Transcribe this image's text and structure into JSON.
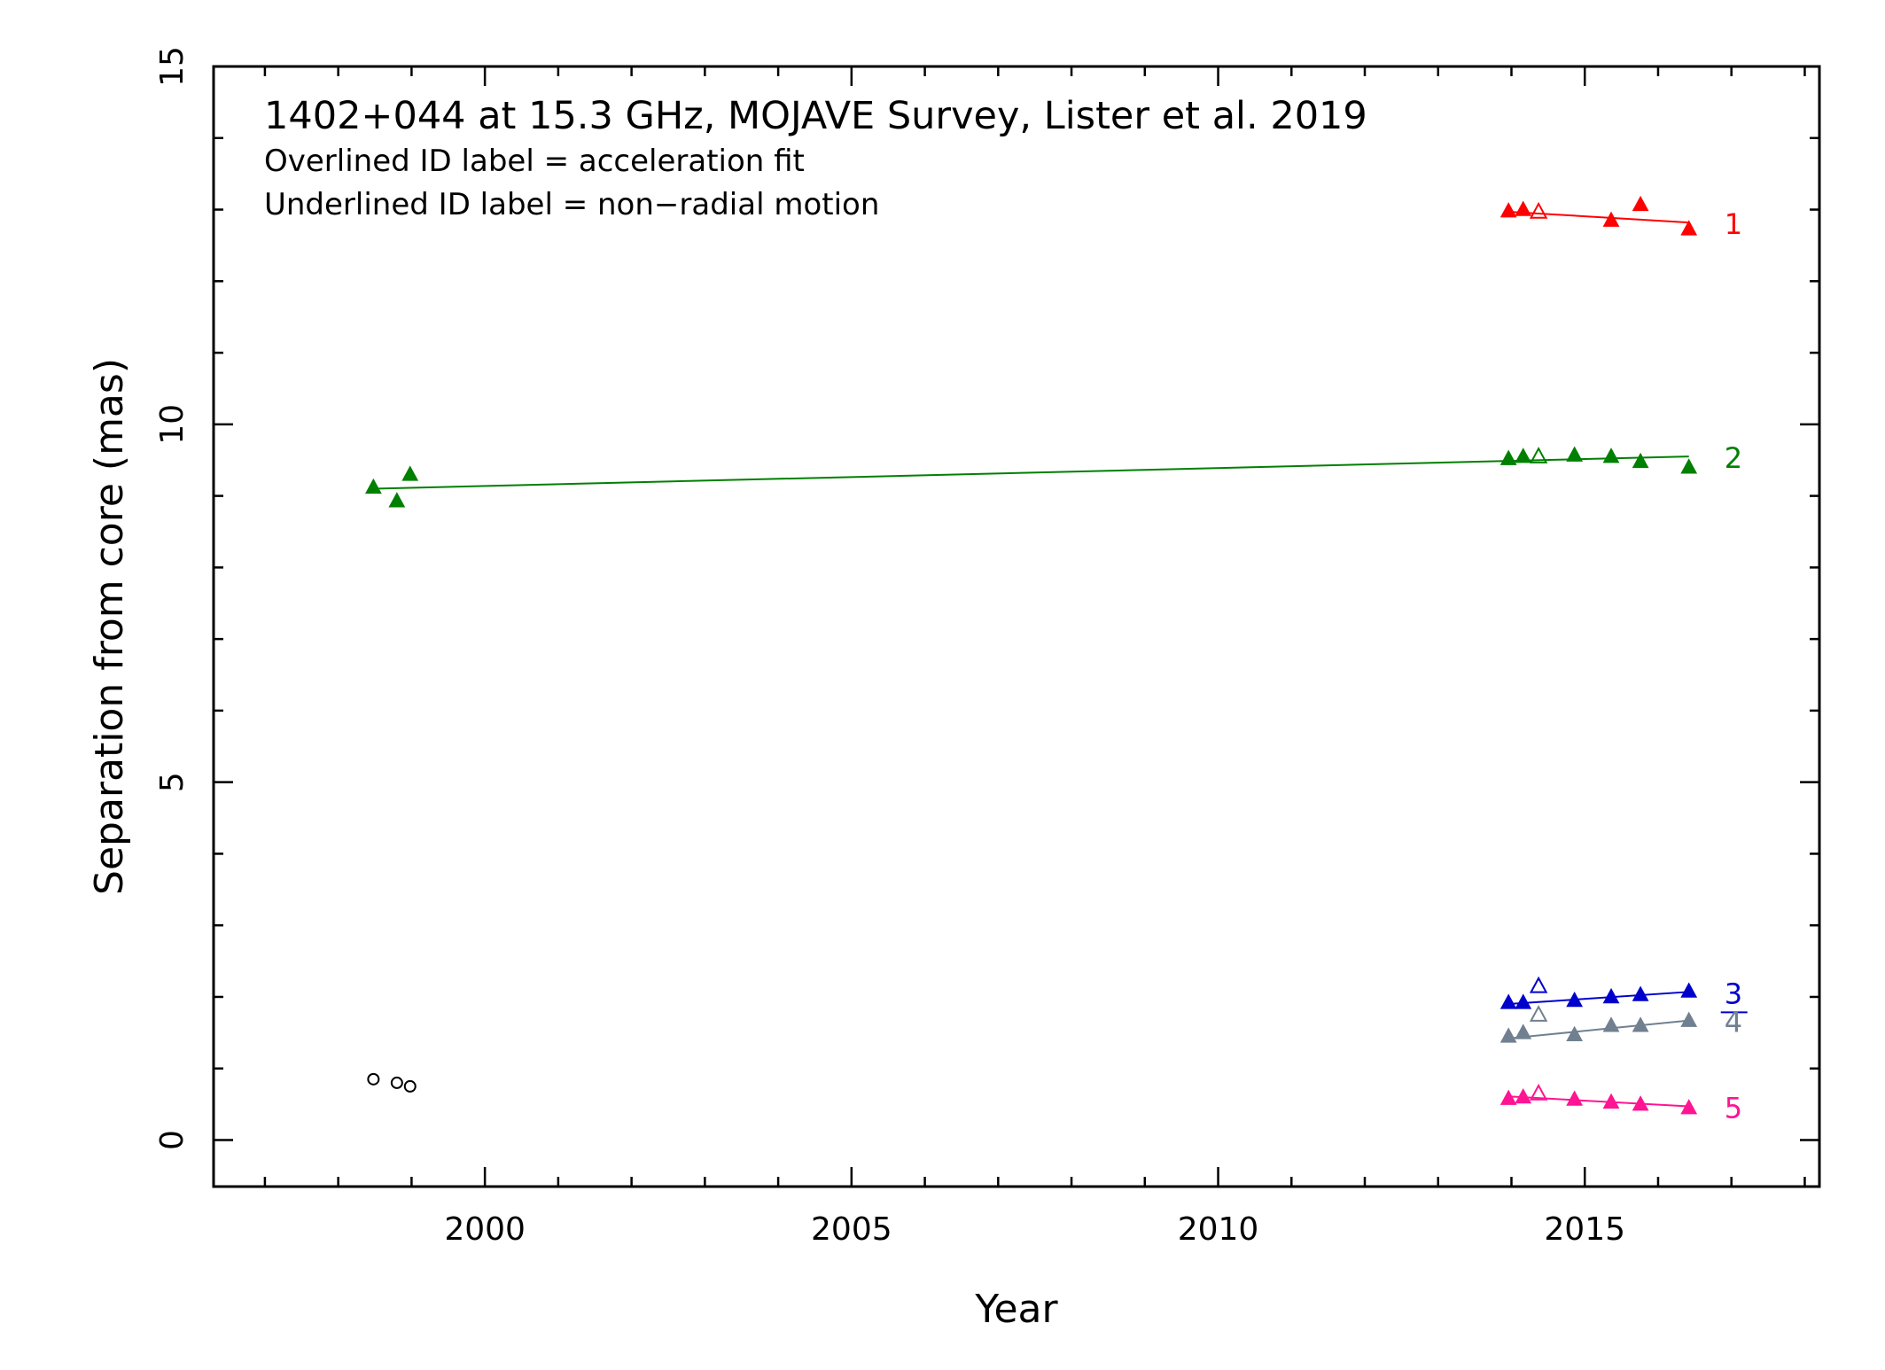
{
  "chart_data": {
    "type": "scatter",
    "title": "1402+044 at 15.3 GHz, MOJAVE Survey, Lister et al. 2019",
    "notes": [
      "Overlined ID label = acceleration fit",
      "Underlined ID label = non−radial motion"
    ],
    "xlabel": "Year",
    "ylabel": "Separation from core (mas)",
    "xlim": [
      1996.3,
      2018.2
    ],
    "ylim": [
      -0.65,
      15.0
    ],
    "x_ticks": [
      2000,
      2005,
      2010,
      2015
    ],
    "y_ticks": [
      0,
      5,
      10,
      15
    ],
    "grid": false,
    "series": [
      {
        "name": "1",
        "label_style": "plain",
        "color": "#ff0000",
        "points": [
          {
            "x": 2013.96,
            "y": 12.98,
            "filled": true
          },
          {
            "x": 2014.16,
            "y": 13.0,
            "filled": true
          },
          {
            "x": 2014.37,
            "y": 12.97,
            "filled": false
          },
          {
            "x": 2015.36,
            "y": 12.85,
            "filled": true
          },
          {
            "x": 2015.76,
            "y": 13.07,
            "filled": true
          },
          {
            "x": 2016.42,
            "y": 12.73,
            "filled": true
          }
        ],
        "fit": [
          [
            2013.96,
            12.97
          ],
          [
            2016.42,
            12.82
          ]
        ]
      },
      {
        "name": "2",
        "label_style": "plain",
        "color": "#008000",
        "points": [
          {
            "x": 1998.48,
            "y": 9.12,
            "filled": true
          },
          {
            "x": 1998.8,
            "y": 8.93,
            "filled": true
          },
          {
            "x": 1998.98,
            "y": 9.3,
            "filled": true
          },
          {
            "x": 2013.96,
            "y": 9.52,
            "filled": true
          },
          {
            "x": 2014.16,
            "y": 9.55,
            "filled": true
          },
          {
            "x": 2014.37,
            "y": 9.55,
            "filled": false
          },
          {
            "x": 2014.86,
            "y": 9.57,
            "filled": true
          },
          {
            "x": 2015.36,
            "y": 9.55,
            "filled": true
          },
          {
            "x": 2015.76,
            "y": 9.48,
            "filled": true
          },
          {
            "x": 2016.42,
            "y": 9.4,
            "filled": true
          }
        ],
        "fit": [
          [
            1998.48,
            9.1
          ],
          [
            2016.42,
            9.55
          ]
        ]
      },
      {
        "name": "3",
        "label_style": "underlined",
        "color": "#0000cc",
        "points": [
          {
            "x": 2013.96,
            "y": 1.92,
            "filled": true
          },
          {
            "x": 2014.16,
            "y": 1.92,
            "filled": true
          },
          {
            "x": 2014.37,
            "y": 2.15,
            "filled": false
          },
          {
            "x": 2014.86,
            "y": 1.95,
            "filled": true
          },
          {
            "x": 2015.36,
            "y": 2.0,
            "filled": true
          },
          {
            "x": 2015.76,
            "y": 2.03,
            "filled": true
          },
          {
            "x": 2016.42,
            "y": 2.08,
            "filled": true
          }
        ],
        "fit": [
          [
            2013.96,
            1.9
          ],
          [
            2016.42,
            2.07
          ]
        ]
      },
      {
        "name": "4",
        "label_style": "plain",
        "color": "#708090",
        "points": [
          {
            "x": 2013.96,
            "y": 1.45,
            "filled": true
          },
          {
            "x": 2014.16,
            "y": 1.5,
            "filled": true
          },
          {
            "x": 2014.37,
            "y": 1.75,
            "filled": false
          },
          {
            "x": 2014.86,
            "y": 1.47,
            "filled": true
          },
          {
            "x": 2015.36,
            "y": 1.6,
            "filled": true
          },
          {
            "x": 2015.76,
            "y": 1.6,
            "filled": true
          },
          {
            "x": 2016.42,
            "y": 1.67,
            "filled": true
          }
        ],
        "fit": [
          [
            2013.96,
            1.42
          ],
          [
            2016.42,
            1.67
          ]
        ]
      },
      {
        "name": "5",
        "label_style": "plain",
        "color": "#ff1493",
        "points": [
          {
            "x": 2013.96,
            "y": 0.58,
            "filled": true
          },
          {
            "x": 2014.16,
            "y": 0.6,
            "filled": true
          },
          {
            "x": 2014.37,
            "y": 0.65,
            "filled": false
          },
          {
            "x": 2014.86,
            "y": 0.57,
            "filled": true
          },
          {
            "x": 2015.36,
            "y": 0.53,
            "filled": true
          },
          {
            "x": 2015.76,
            "y": 0.5,
            "filled": true
          },
          {
            "x": 2016.42,
            "y": 0.45,
            "filled": true
          }
        ],
        "fit": [
          [
            2013.96,
            0.61
          ],
          [
            2016.42,
            0.47
          ]
        ]
      },
      {
        "name": "",
        "label_style": "none",
        "color": "#000000",
        "marker": "circle",
        "points": [
          {
            "x": 1998.48,
            "y": 0.85,
            "filled": false
          },
          {
            "x": 1998.8,
            "y": 0.8,
            "filled": false
          },
          {
            "x": 1998.98,
            "y": 0.75,
            "filled": false
          }
        ]
      }
    ]
  }
}
